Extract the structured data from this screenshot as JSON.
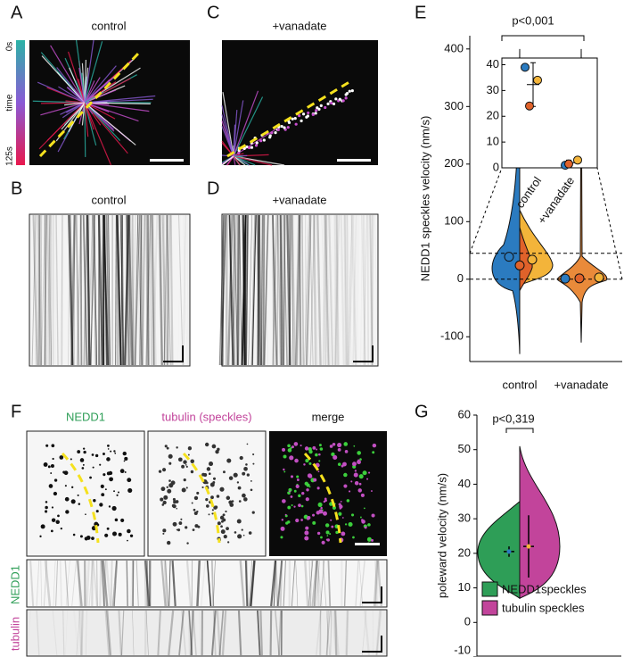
{
  "panels": {
    "A": {
      "label": "A",
      "title": "control",
      "colorbar": [
        "0s",
        "time",
        "125s"
      ]
    },
    "B": {
      "label": "B",
      "title": "control"
    },
    "C": {
      "label": "C",
      "title": "+vanadate"
    },
    "D": {
      "label": "D",
      "title": "+vanadate"
    },
    "F": {
      "label": "F",
      "channels": [
        "NEDD1",
        "tubulin (speckles)",
        "merge"
      ],
      "kymo_labels": [
        "tubulin",
        "NEDD1"
      ]
    }
  },
  "chart_data": [
    {
      "label": "E",
      "type": "violin",
      "ylabel": "NEDD1 speckles velocity  (nm/s)",
      "annotation": "p<0,001",
      "categories": [
        "control",
        "+vanadate"
      ],
      "ylim": [
        -143,
        423
      ],
      "yticks": [
        -100,
        0,
        100,
        200,
        300,
        400
      ],
      "series": [
        {
          "color": "#2b7bc0",
          "values": [
            39,
            1
          ]
        },
        {
          "color": "#e0622a",
          "values": [
            24,
            1.5
          ]
        },
        {
          "color": "#f3b43a",
          "values": [
            34,
            3
          ]
        }
      ],
      "inset": {
        "ylim": [
          0,
          42.6
        ],
        "yticks": [
          0,
          10,
          20,
          30,
          40
        ],
        "mean": [
          32.3,
          2
        ],
        "error": [
          8.5,
          1
        ]
      }
    },
    {
      "label": "G",
      "type": "violin",
      "ylabel": "poleward  velocity  (nm/s)",
      "annotation": "p<0,319",
      "ylim": [
        -10,
        60
      ],
      "yticks": [
        -10,
        0,
        10,
        20,
        30,
        40,
        50,
        60
      ],
      "series": [
        {
          "name": "NEDD1speckles",
          "color": "#2e9e57",
          "values": [
            20.5
          ],
          "error": [
            1.5
          ]
        },
        {
          "name": "tubulin speckles",
          "color": "#c2449b",
          "values": [
            22
          ],
          "error": [
            9
          ]
        }
      ]
    }
  ]
}
